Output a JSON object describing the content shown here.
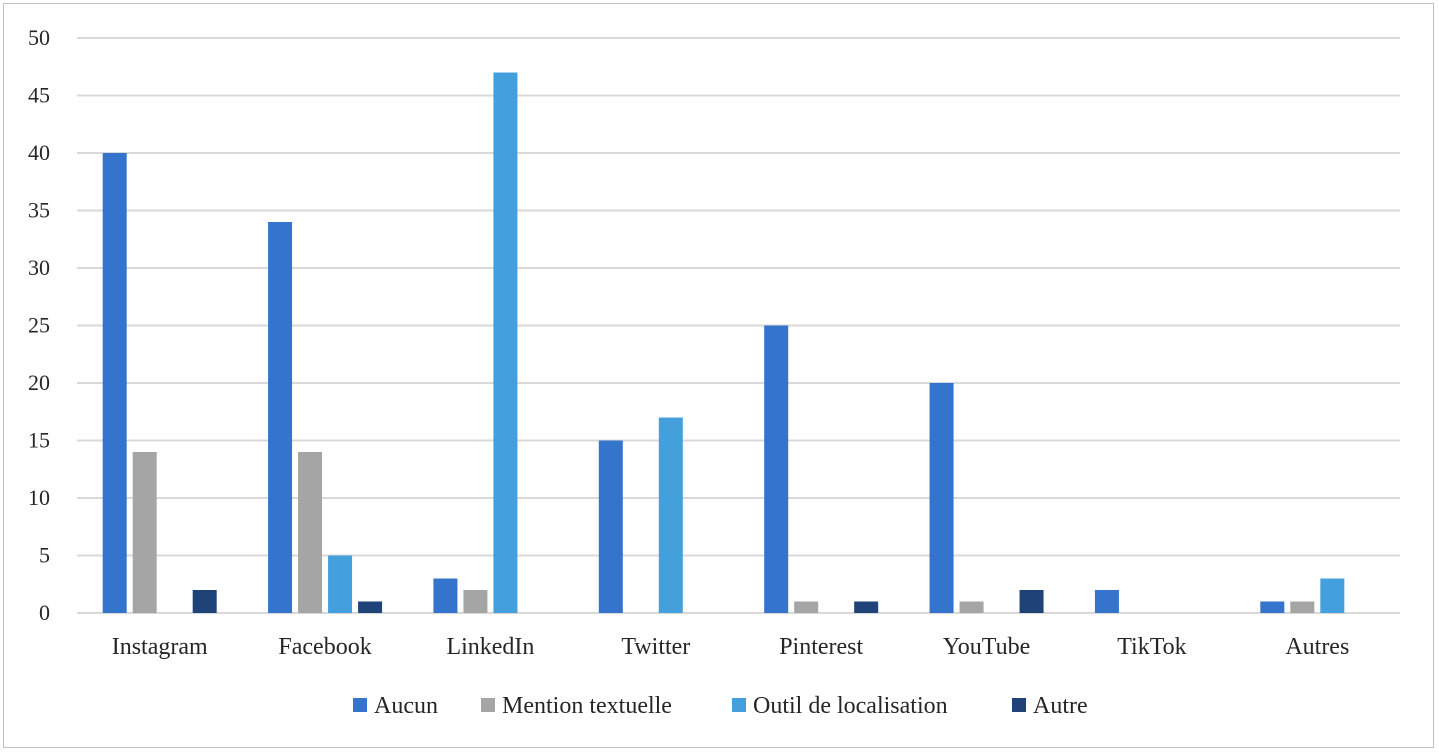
{
  "chart_data": {
    "type": "bar",
    "title": "",
    "xlabel": "",
    "ylabel": "",
    "ylim": [
      0,
      50
    ],
    "ytick_step": 5,
    "grid": true,
    "legend_position": "bottom",
    "categories": [
      "Instagram",
      "Facebook",
      "LinkedIn",
      "Twitter",
      "Pinterest",
      "YouTube",
      "TikTok",
      "Autres"
    ],
    "series": [
      {
        "name": "Aucun",
        "color": "#3474cc",
        "values": [
          40,
          34,
          3,
          15,
          25,
          20,
          2,
          1
        ]
      },
      {
        "name": "Mention textuelle",
        "color": "#a5a5a5",
        "values": [
          14,
          14,
          2,
          0,
          1,
          1,
          0,
          1
        ]
      },
      {
        "name": "Outil de localisation",
        "color": "#44a0dc",
        "values": [
          0,
          5,
          47,
          17,
          0,
          0,
          0,
          3
        ]
      },
      {
        "name": "Autre",
        "color": "#1f4279",
        "values": [
          2,
          1,
          0,
          0,
          1,
          2,
          0,
          0
        ]
      }
    ]
  }
}
